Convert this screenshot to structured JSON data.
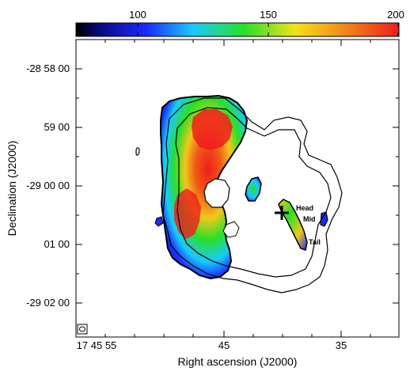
{
  "colorbar": {
    "ticks": [
      "100",
      "150",
      "200"
    ],
    "tick_values": [
      100,
      150,
      200
    ],
    "range": [
      60,
      200
    ],
    "colors": [
      "#000000",
      "#1a2cff",
      "#19c9ff",
      "#28e028",
      "#f2e21a",
      "#f08418",
      "#f01c1c"
    ]
  },
  "axes": {
    "xlabel": "Right ascension (J2000)",
    "ylabel": "Declination (J2000)",
    "xticks": [
      "17 45 55",
      "45",
      "35"
    ],
    "yticks": [
      "-28 58 00",
      "59 00",
      "-29 00 00",
      "01 00",
      "-29 02 00"
    ]
  },
  "annotations": {
    "head": "Head",
    "mid": "Mid",
    "tail": "Tail"
  },
  "styles": {
    "frame_color": "#000000",
    "contour_color": "#000000"
  }
}
